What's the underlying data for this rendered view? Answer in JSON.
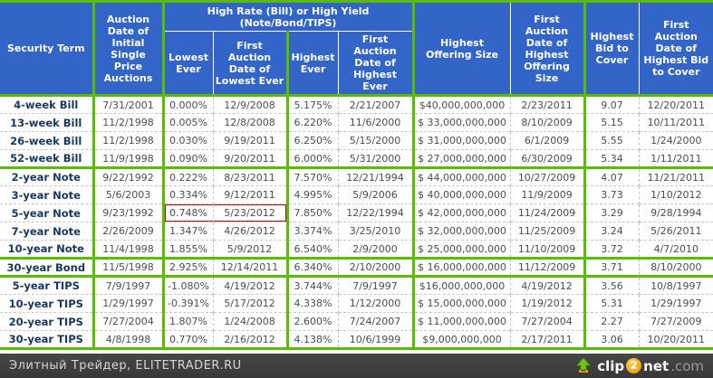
{
  "colors": {
    "header_blue": "#3365c9",
    "grid_green": "#5bbd00",
    "row_separator_gray": "#c9c9c9",
    "term_text_navy": "#17375e",
    "data_text_gray": "#4d4d4d",
    "highlight_red": "#cc0000",
    "footer_bg": "#3e3e3e",
    "logo_orange": "#f08c00"
  },
  "chart_data": {
    "type": "table",
    "header": {
      "security_term": "Security Term",
      "auction_date_initial": "Auction Date of Initial Single Price Auctions",
      "high_rate_group": "High Rate (Bill) or High Yield (Note/Bond/TIPS)",
      "lowest_ever": "Lowest Ever",
      "first_auction_lowest": "First Auction Date of Lowest Ever",
      "highest_ever": "Highest Ever",
      "first_auction_highest": "First Auction Date of Highest Ever",
      "highest_offering": "Highest Offering Size",
      "first_auction_offering": "First Auction Date of Highest Offering Size",
      "highest_bid_cover": "Highest Bid to Cover",
      "first_auction_bid_cover": "First Auction Date of Highest Bid to Cover"
    },
    "groups": [
      {
        "name": "bills",
        "rows": [
          {
            "term": "4-week Bill",
            "initial_auction": "7/31/2001",
            "lowest": "0.000%",
            "lowest_date": "12/9/2008",
            "highest": "5.175%",
            "highest_date": "2/21/2007",
            "offering": "$40,000,000,000",
            "offering_date": "2/23/2011",
            "bid_cover": "9.07",
            "bid_cover_date": "12/20/2011"
          },
          {
            "term": "13-week Bill",
            "initial_auction": "11/2/1998",
            "lowest": "0.005%",
            "lowest_date": "12/8/2008",
            "highest": "6.220%",
            "highest_date": "11/6/2000",
            "offering": "$ 33,000,000,000",
            "offering_date": "8/10/2009",
            "bid_cover": "5.15",
            "bid_cover_date": "10/11/2011"
          },
          {
            "term": "26-week Bill",
            "initial_auction": "11/2/1998",
            "lowest": "0.030%",
            "lowest_date": "9/19/2011",
            "highest": "6.250%",
            "highest_date": "5/15/2000",
            "offering": "$ 31,000,000,000",
            "offering_date": "6/1/2009",
            "bid_cover": "5.55",
            "bid_cover_date": "1/24/2000"
          },
          {
            "term": "52-week Bill",
            "initial_auction": "11/9/1998",
            "lowest": "0.090%",
            "lowest_date": "9/20/2011",
            "highest": "6.000%",
            "highest_date": "5/31/2000",
            "offering": "$ 27,000,000,000",
            "offering_date": "6/30/2009",
            "bid_cover": "5.34",
            "bid_cover_date": "1/11/2011"
          }
        ]
      },
      {
        "name": "notes",
        "rows": [
          {
            "term": "2-year Note",
            "initial_auction": "9/22/1992",
            "lowest": "0.222%",
            "lowest_date": "8/23/2011",
            "highest": "7.570%",
            "highest_date": "12/21/1994",
            "offering": "$ 44,000,000,000",
            "offering_date": "10/27/2009",
            "bid_cover": "4.07",
            "bid_cover_date": "11/21/2011"
          },
          {
            "term": "3-year Note",
            "initial_auction": "5/6/2003",
            "lowest": "0.334%",
            "lowest_date": "9/12/2011",
            "highest": "4.995%",
            "highest_date": "5/9/2006",
            "offering": "$ 40,000,000,000",
            "offering_date": "11/9/2009",
            "bid_cover": "3.73",
            "bid_cover_date": "1/10/2012"
          },
          {
            "term": "5-year Note",
            "initial_auction": "9/23/1992",
            "lowest": "0.748%",
            "lowest_date": "5/23/2012",
            "highest": "7.850%",
            "highest_date": "12/22/1994",
            "offering": "$ 42,000,000,000",
            "offering_date": "11/24/2009",
            "bid_cover": "3.29",
            "bid_cover_date": "9/28/1994",
            "highlight": true
          },
          {
            "term": "7-year Note",
            "initial_auction": "2/26/2009",
            "lowest": "1.347%",
            "lowest_date": "4/26/2012",
            "highest": "3.374%",
            "highest_date": "3/25/2010",
            "offering": "$ 32,000,000,000",
            "offering_date": "11/25/2009",
            "bid_cover": "3.24",
            "bid_cover_date": "5/26/2011"
          },
          {
            "term": "10-year Note",
            "initial_auction": "11/4/1998",
            "lowest": "1.855%",
            "lowest_date": "5/9/2012",
            "highest": "6.540%",
            "highest_date": "2/9/2000",
            "offering": "$ 25,000,000,000",
            "offering_date": "11/10/2009",
            "bid_cover": "3.72",
            "bid_cover_date": "4/7/2010"
          }
        ]
      },
      {
        "name": "bonds",
        "rows": [
          {
            "term": "30-year Bond",
            "initial_auction": "11/5/1998",
            "lowest": "2.925%",
            "lowest_date": "12/14/2011",
            "highest": "6.340%",
            "highest_date": "2/10/2000",
            "offering": "$ 16,000,000,000",
            "offering_date": "11/12/2009",
            "bid_cover": "3.71",
            "bid_cover_date": "8/10/2000"
          }
        ]
      },
      {
        "name": "tips",
        "rows": [
          {
            "term": "5-year TIPS",
            "initial_auction": "7/9/1997",
            "lowest": "-1.080%",
            "lowest_date": "4/19/2012",
            "highest": "3.744%",
            "highest_date": "7/9/1997",
            "offering": "$16,000,000,000",
            "offering_date": "4/19/2012",
            "bid_cover": "3.56",
            "bid_cover_date": "10/8/1997"
          },
          {
            "term": "10-year TIPS",
            "initial_auction": "1/29/1997",
            "lowest": "-0.391%",
            "lowest_date": "5/17/2012",
            "highest": "4.338%",
            "highest_date": "1/12/2000",
            "offering": "$ 15,000,000,000",
            "offering_date": "1/19/2012",
            "bid_cover": "5.31",
            "bid_cover_date": "1/29/1997"
          },
          {
            "term": "20-year TIPS",
            "initial_auction": "7/27/2004",
            "lowest": "1.807%",
            "lowest_date": "1/24/2008",
            "highest": "2.600%",
            "highest_date": "7/24/2007",
            "offering": "$ 11,000,000,000",
            "offering_date": "7/27/2004",
            "bid_cover": "2.27",
            "bid_cover_date": "7/27/2009"
          },
          {
            "term": "30-year TIPS",
            "initial_auction": "4/8/1998",
            "lowest": "0.770%",
            "lowest_date": "2/16/2012",
            "highest": "4.138%",
            "highest_date": "10/6/1999",
            "offering": "$9,000,000,000",
            "offering_date": "2/17/2011",
            "bid_cover": "3.06",
            "bid_cover_date": "10/20/2011"
          }
        ]
      }
    ],
    "highlight": {
      "row": "5-year Note",
      "cells": [
        "lowest",
        "lowest_date"
      ],
      "color": "#cc0000"
    }
  },
  "footer": {
    "credit": "Элитный Трейдер, ELITETRADER.RU",
    "logo": {
      "clip": "clip",
      "two": "2",
      "net": "net",
      "dotcom": ".com"
    }
  }
}
